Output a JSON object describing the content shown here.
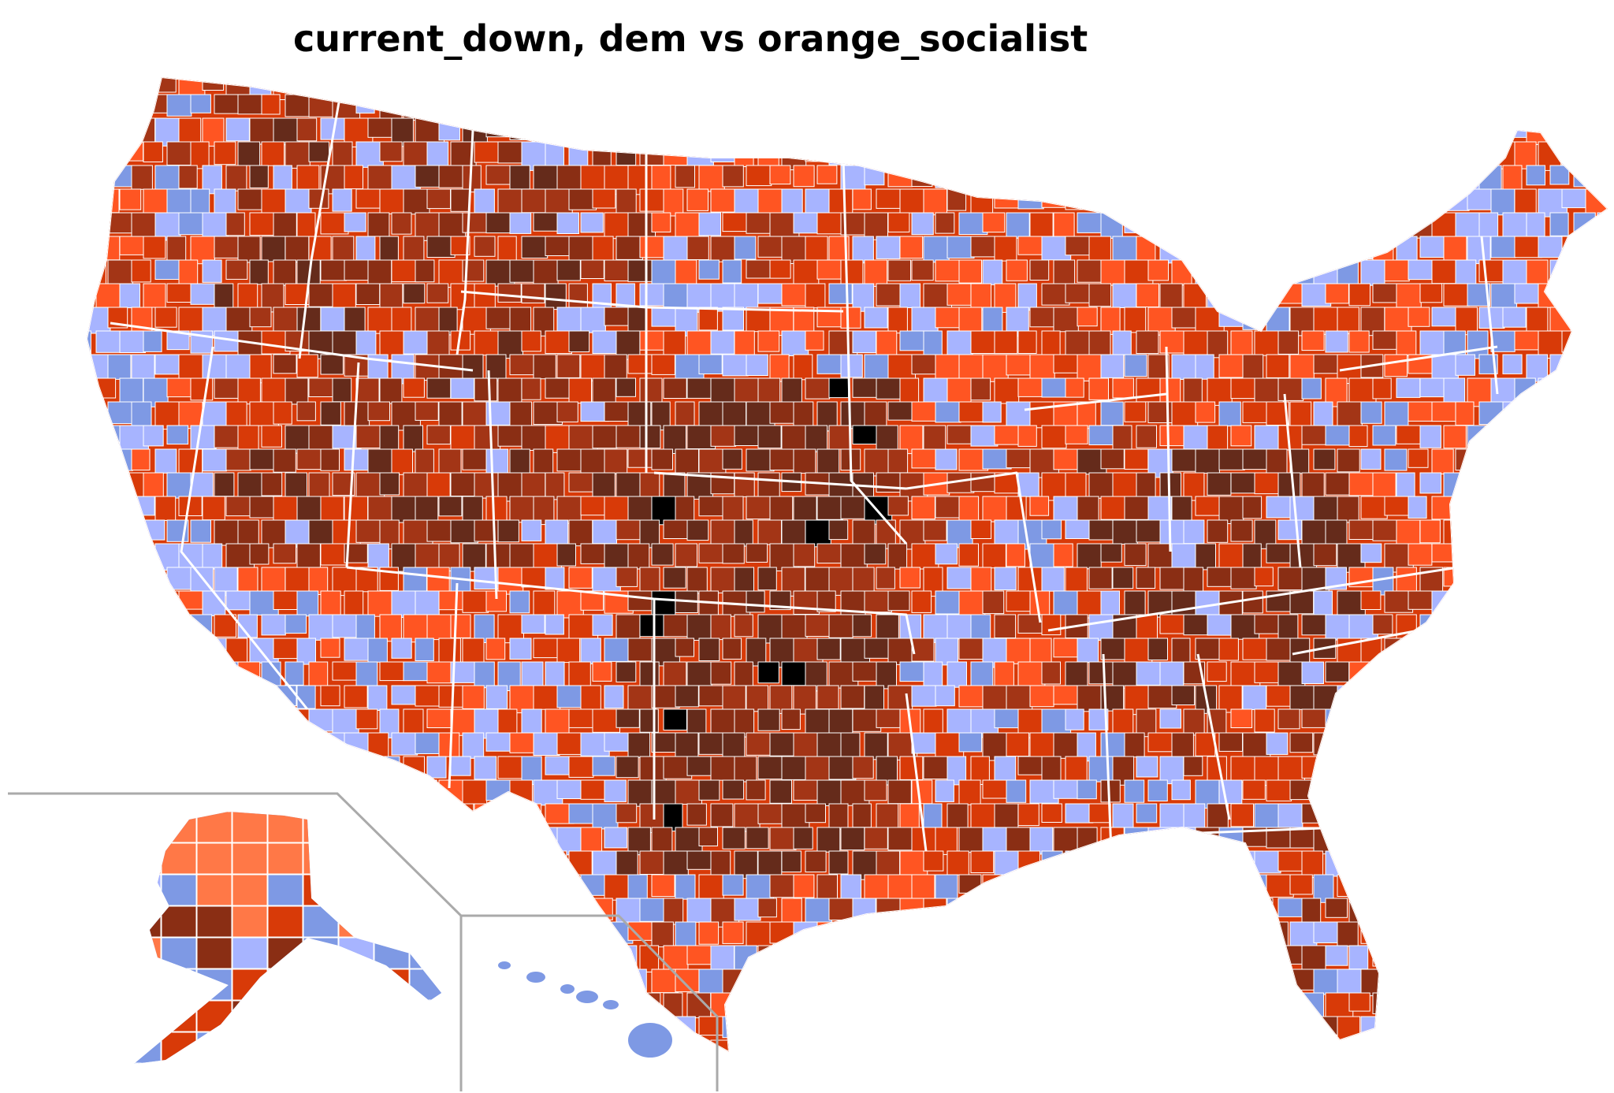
{
  "title": "current_down, dem vs orange_socialist",
  "colors": {
    "dem_light": "#c8d8ff",
    "dem_pale": "#a7b4ff",
    "dem_mid": "#7e99e4",
    "dem_strong": "#6a73e6",
    "dem_deep": "#4a4ad9",
    "soc_light": "#ff7847",
    "soc_mid": "#ff5522",
    "soc_strong": "#d83a08",
    "soc_deep": "#a33516",
    "soc_darker": "#8a2e14",
    "soc_darkest": "#652b1b",
    "extreme": "#000000",
    "state_border": "#ffffff",
    "inset_border": "#aaaaaa"
  },
  "icons": {
    "map": "choropleth-map",
    "alaska": "alaska-inset",
    "hawaii": "hawaii-inset"
  }
}
